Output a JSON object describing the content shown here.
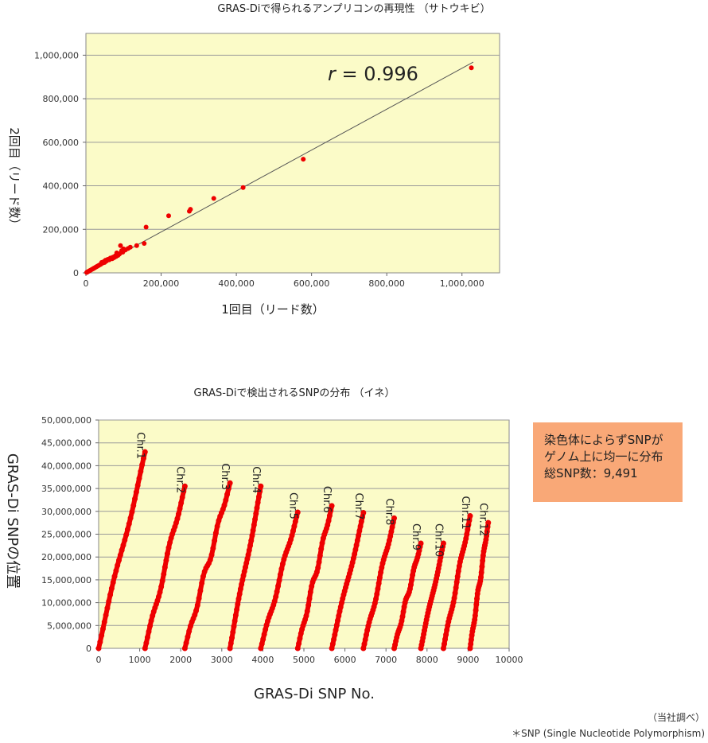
{
  "colors": {
    "plot_bg": "#fbfbc8",
    "point": "#ee0000",
    "fit_line": "#555555",
    "grid": "#9a9a9a",
    "note_bg": "#f9a877"
  },
  "chart_data": [
    {
      "type": "scatter",
      "title": "GRAS-Diで得られるアンプリコンの再現性 （サトウキビ）",
      "xlabel": "1回目（リード数）",
      "ylabel": "2回目（リード数）",
      "xlim": [
        0,
        1100000
      ],
      "ylim": [
        0,
        1100000
      ],
      "x_ticks": [
        0,
        200000,
        400000,
        600000,
        800000,
        1000000
      ],
      "x_tick_labels": [
        "0",
        "200,000",
        "400,000",
        "600,000",
        "800,000",
        "1,000,000"
      ],
      "y_ticks": [
        0,
        200000,
        400000,
        600000,
        800000,
        1000000
      ],
      "y_tick_labels": [
        "0",
        "200,000",
        "400,000",
        "600,000",
        "800,000",
        "1,000,000"
      ],
      "grid": "horizontal",
      "annotation": {
        "r_symbol": "r",
        "r_value": "= 0.996"
      },
      "trendline": {
        "x": [
          0,
          1030000
        ],
        "y": [
          0,
          968000
        ]
      },
      "series": [
        {
          "x": [
            1025000,
            578000,
            418000,
            340000,
            278000,
            275000,
            220000,
            160000,
            155000,
            135000,
            118000,
            112000,
            105000,
            100000,
            98000,
            95000,
            92000,
            90000,
            88000,
            85000,
            82000,
            80000,
            78000,
            75000,
            72000,
            70000,
            65000,
            62000,
            58000,
            55000,
            52000,
            50000,
            48000,
            45000,
            42000,
            40000,
            38000,
            35000,
            32000,
            30000,
            28000,
            25000,
            22000,
            20000,
            18000,
            15000,
            12000,
            10000,
            8000,
            6000,
            4000,
            3000,
            2000
          ],
          "y": [
            942000,
            522000,
            392000,
            342000,
            292000,
            283000,
            262000,
            210000,
            135000,
            125000,
            118000,
            112000,
            105000,
            110000,
            95000,
            102000,
            125000,
            88000,
            85000,
            80000,
            92000,
            75000,
            78000,
            70000,
            72000,
            65000,
            68000,
            60000,
            62000,
            55000,
            58000,
            48000,
            52000,
            45000,
            48000,
            40000,
            38000,
            35000,
            32000,
            30000,
            28000,
            25000,
            22000,
            20000,
            18000,
            15000,
            12000,
            10000,
            8000,
            6000,
            4000,
            3000,
            2000
          ]
        }
      ]
    },
    {
      "type": "scatter",
      "title": "GRAS-Diで検出されるSNPの分布 （イネ）",
      "xlabel": "GRAS-Di SNP No.",
      "ylabel": "GRAS-Di SNPの位置",
      "xlim": [
        0,
        10000
      ],
      "ylim": [
        0,
        50000000
      ],
      "x_ticks": [
        0,
        1000,
        2000,
        3000,
        4000,
        5000,
        6000,
        7000,
        8000,
        9000,
        10000
      ],
      "x_tick_labels": [
        "0",
        "1000",
        "2000",
        "3000",
        "4000",
        "5000",
        "6000",
        "7000",
        "8000",
        "9000",
        "10000"
      ],
      "y_ticks": [
        0,
        5000000,
        10000000,
        15000000,
        20000000,
        25000000,
        30000000,
        35000000,
        40000000,
        45000000,
        50000000
      ],
      "y_tick_labels": [
        "0",
        "5,000,000",
        "10,000,000",
        "15,000,000",
        "20,000,000",
        "25,000,000",
        "30,000,000",
        "35,000,000",
        "40,000,000",
        "45,000,000",
        "50,000,000"
      ],
      "grid": "horizontal",
      "chromosomes": [
        {
          "name": "Chr.1",
          "start": 0,
          "end": 1130,
          "max": 43000000
        },
        {
          "name": "Chr.2",
          "start": 1130,
          "end": 2100,
          "max": 35500000
        },
        {
          "name": "Chr.3",
          "start": 2100,
          "end": 3200,
          "max": 36200000
        },
        {
          "name": "Chr.4",
          "start": 3200,
          "end": 3950,
          "max": 35500000
        },
        {
          "name": "Chr.5",
          "start": 3950,
          "end": 4850,
          "max": 29800000
        },
        {
          "name": "Chr.6",
          "start": 4850,
          "end": 5680,
          "max": 31200000
        },
        {
          "name": "Chr.7",
          "start": 5680,
          "end": 6450,
          "max": 29700000
        },
        {
          "name": "Chr.8",
          "start": 6450,
          "end": 7200,
          "max": 28500000
        },
        {
          "name": "Chr.9",
          "start": 7200,
          "end": 7850,
          "max": 23000000
        },
        {
          "name": "Chr.10",
          "start": 7850,
          "end": 8400,
          "max": 23000000
        },
        {
          "name": "Chr.11",
          "start": 8400,
          "end": 9050,
          "max": 29000000
        },
        {
          "name": "Chr.12",
          "start": 9050,
          "end": 9491,
          "max": 27500000
        }
      ]
    }
  ],
  "note": {
    "line1": "染色体によらずSNPが",
    "line2": "ゲノム上に均一に分布",
    "line3": "総SNP数：9,491"
  },
  "footnotes": {
    "source": "（当社調べ）",
    "snp_def": "＊SNP (Single Nucleotide Polymorphism)"
  }
}
